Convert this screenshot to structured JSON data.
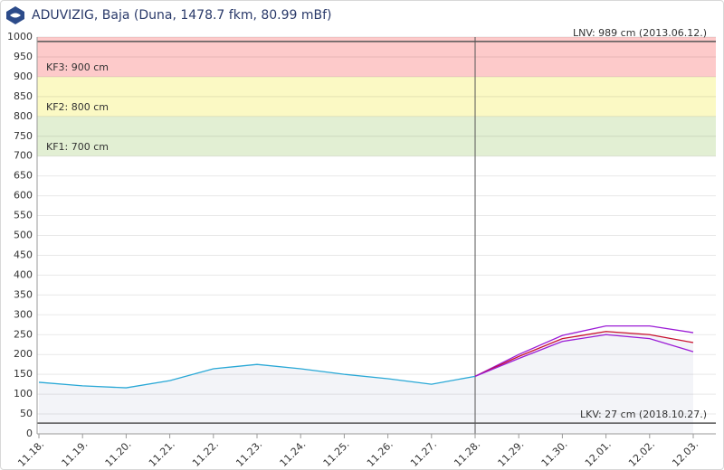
{
  "chart_data": {
    "type": "line",
    "title": "ADUVIZIG, Baja (Duna, 1478.7 fkm, 80.99 mBf)",
    "categories": [
      "11.18.",
      "11.19.",
      "11.20.",
      "11.21.",
      "11.22.",
      "11.23.",
      "11.24.",
      "11.25.",
      "11.26.",
      "11.27.",
      "11.28.",
      "11.29.",
      "11.30.",
      "12.01.",
      "12.02.",
      "12.03."
    ],
    "series": [
      {
        "color": "#29a8d6",
        "fill": true,
        "values": [
          130,
          121,
          116,
          134,
          164,
          175,
          164,
          150,
          139,
          125,
          145,
          null,
          null,
          null,
          null,
          null
        ]
      },
      {
        "color": "#9b1cd6",
        "fill": false,
        "values": [
          null,
          null,
          null,
          null,
          null,
          null,
          null,
          null,
          null,
          null,
          145,
          200,
          248,
          272,
          272,
          255
        ]
      },
      {
        "color": "#c8102e",
        "fill": true,
        "values": [
          null,
          null,
          null,
          null,
          null,
          null,
          null,
          null,
          null,
          null,
          145,
          195,
          240,
          258,
          250,
          230
        ]
      },
      {
        "color": "#9b1cd6",
        "fill": false,
        "values": [
          null,
          null,
          null,
          null,
          null,
          null,
          null,
          null,
          null,
          null,
          145,
          190,
          233,
          250,
          240,
          207
        ]
      }
    ],
    "ylim": [
      0,
      1000
    ],
    "yticks": [
      0,
      50,
      100,
      150,
      200,
      250,
      300,
      350,
      400,
      450,
      500,
      550,
      600,
      650,
      700,
      750,
      800,
      850,
      900,
      950,
      1000
    ],
    "grid": true,
    "now": "11.28.",
    "zones": [
      {
        "label": "KF1: 700 cm",
        "from": 700,
        "to": 800,
        "color": "#e2efd3"
      },
      {
        "label": "KF2: 800 cm",
        "from": 800,
        "to": 900,
        "color": "#fbf9c4"
      },
      {
        "label": "KF3: 900 cm",
        "from": 900,
        "to": 1000,
        "color": "#fdcaca"
      }
    ],
    "reference_lines": [
      {
        "label": "LNV: 989 cm (2013.06.12.)",
        "value": 989
      },
      {
        "label": "LKV: 27 cm (2018.10.27.)",
        "value": 27
      }
    ]
  }
}
